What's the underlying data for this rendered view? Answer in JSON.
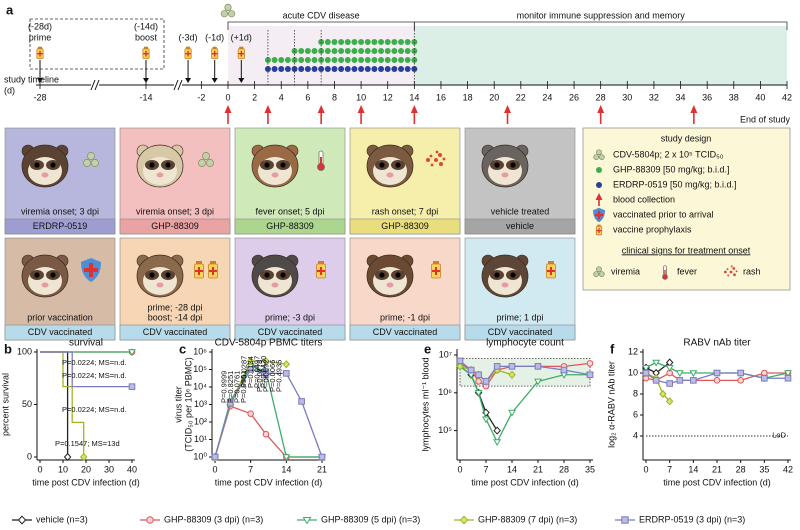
{
  "diagram": {
    "label": "a",
    "timeline_label": [
      "study timeline",
      "(d)"
    ],
    "ticks": [
      -28,
      -14,
      -2,
      0,
      2,
      4,
      6,
      8,
      10,
      12,
      14,
      16,
      18,
      20,
      22,
      24,
      26,
      28,
      30,
      32,
      34,
      36,
      38,
      40,
      42
    ],
    "phases": [
      {
        "label": "acute CDV disease",
        "from": 0,
        "to": 14
      },
      {
        "label": "monitor immune suppression and memory",
        "from": 14,
        "to": 42
      }
    ],
    "events": [
      {
        "day": -28,
        "lines": [
          "(-28d)",
          "prime"
        ]
      },
      {
        "day": -14,
        "lines": [
          "(-14d)",
          "boost"
        ]
      },
      {
        "day": -3,
        "lines": [
          "(-3d)"
        ]
      },
      {
        "day": -1,
        "lines": [
          "(-1d)"
        ]
      },
      {
        "day": 1,
        "lines": [
          "(+1d)"
        ]
      }
    ],
    "treatment_rows": [
      {
        "color": "#3cae4a",
        "from": 7,
        "to": 14
      },
      {
        "color": "#3cae4a",
        "from": 5,
        "to": 14
      },
      {
        "color": "#3cae4a",
        "from": 3,
        "to": 14
      },
      {
        "color": "#2a3f9c",
        "from": 3,
        "to": 14
      }
    ],
    "blood_collection_days": [
      0,
      3,
      7,
      10,
      14,
      21,
      28,
      35
    ],
    "end_label": "End of study",
    "cards": [
      {
        "caption": [
          "viremia onset; 3 dpi"
        ],
        "group": "ERDRP-0519",
        "bg": "#b7b7dd",
        "strip": "#9d9dd2",
        "icon": "virus"
      },
      {
        "caption": [
          "viremia onset; 3 dpi"
        ],
        "group": "GHP-88309",
        "bg": "#f3bfbf",
        "strip": "#e9a3a3",
        "icon": "virus"
      },
      {
        "caption": [
          "fever onset; 5 dpi"
        ],
        "group": "GHP-88309",
        "bg": "#cfe9b8",
        "strip": "#acd68f",
        "icon": "thermometer"
      },
      {
        "caption": [
          "rash onset;  7 dpi"
        ],
        "group": "GHP-88309",
        "bg": "#f6efac",
        "strip": "#e9de7e",
        "icon": "rash"
      },
      {
        "caption": [
          "vehicle treated"
        ],
        "group": "vehicle",
        "bg": "#c3c3c3",
        "strip": "#a5a5a5",
        "icon": "none"
      },
      {
        "caption": [
          "prior vaccination"
        ],
        "group": "CDV vaccinated",
        "bg": "#d6bba7",
        "strip": "#b7dbea",
        "icon": "shield"
      },
      {
        "caption": [
          "prime; -28 dpi",
          "boost; -14 dpi"
        ],
        "group": "CDV vaccinated",
        "bg": "#f6d6b4",
        "strip": "#b7dbea",
        "icon": "vial2"
      },
      {
        "caption": [
          "prime; -3 dpi"
        ],
        "group": "CDV vaccinated",
        "bg": "#ddcdea",
        "strip": "#b7dbea",
        "icon": "vial"
      },
      {
        "caption": [
          "prime; -1 dpi"
        ],
        "group": "CDV vaccinated",
        "bg": "#f8d8c8",
        "strip": "#b7dbea",
        "icon": "vial"
      },
      {
        "caption": [
          "prime; 1 dpi"
        ],
        "group": "CDV vaccinated",
        "bg": "#d1e9f1",
        "strip": "#b7dbea",
        "icon": "vial"
      }
    ],
    "study_design": {
      "title": "study design",
      "items": [
        {
          "icon": "virus",
          "text": "CDV-5804p; 2 x 10⁵ TCID₅₀"
        },
        {
          "icon": "green-dot",
          "text": "GHP-88309 [50 mg/kg; b.i.d.]"
        },
        {
          "icon": "blue-dot",
          "text": "ERDRP-0519 [50 mg/kg; b.i.d.]"
        },
        {
          "icon": "arrow",
          "text": "blood collection"
        },
        {
          "icon": "shield",
          "text": "vaccinated prior to arrival"
        },
        {
          "icon": "vial",
          "text": "vaccine prophylaxis"
        }
      ],
      "clinical_title": "clinical signs for treatment onset",
      "signs": [
        {
          "icon": "virus",
          "text": "viremia"
        },
        {
          "icon": "thermometer",
          "text": "fever"
        },
        {
          "icon": "rash",
          "text": "rash"
        }
      ]
    }
  },
  "legend": [
    {
      "name": "vehicle (n=3)",
      "color": "#222222",
      "fill": "#ffffff",
      "marker": "diamond"
    },
    {
      "name": "GHP-88309 (3 dpi) (n=3)",
      "color": "#e0565b",
      "fill": "#fbd6d6",
      "marker": "circle"
    },
    {
      "name": "GHP-88309 (5 dpi) (n=3)",
      "color": "#3cae6a",
      "fill": "#ffffff",
      "marker": "triangle-down"
    },
    {
      "name": "GHP-88309 (7 dpi) (n=3)",
      "color": "#a3b527",
      "fill": "#d9e26d",
      "marker": "diamond"
    },
    {
      "name": "ERDRP-0519 (3 dpi) (n=3)",
      "color": "#7b7bc0",
      "fill": "#bcbce3",
      "marker": "square"
    }
  ],
  "chart_data": [
    {
      "type": "line",
      "step": true,
      "label": "b",
      "title": "survival",
      "xlabel": "time post CDV infection (d)",
      "ylabel": [
        "percent survival"
      ],
      "xlim": [
        0,
        40
      ],
      "xticks": [
        0,
        10,
        20,
        30,
        40
      ],
      "ylim": [
        0,
        100
      ],
      "yticks": [
        0,
        50,
        100
      ],
      "series": [
        {
          "x": [
            0,
            12
          ],
          "values": [
            100,
            0
          ]
        },
        {
          "x": [
            0,
            40
          ],
          "values": [
            100,
            100
          ]
        },
        {
          "x": [
            0,
            40
          ],
          "values": [
            100,
            100
          ]
        },
        {
          "x": [
            0,
            10,
            14,
            19
          ],
          "values": [
            100,
            67,
            33,
            0
          ]
        },
        {
          "x": [
            0,
            14,
            40
          ],
          "values": [
            100,
            67,
            67
          ]
        }
      ],
      "annotations": [
        {
          "text": "P=0.0224; MS=n.d.",
          "color": "#e0565b"
        },
        {
          "text": "P=0.0224; MS=n.d.",
          "color": "#3cae6a"
        },
        {
          "text": "P=0.0224; MS=n.d.",
          "color": "#7b7bc0"
        },
        {
          "text": "P=0.1547; MS=13d",
          "color": "#a3b527"
        }
      ]
    },
    {
      "type": "line",
      "log": true,
      "label": "c",
      "title": "CDV-5804p PBMC titers",
      "xlabel": "time post CDV infection (d)",
      "ylabel": [
        "virus titer",
        "(TCID₅₀ per 10⁶ PBMC)"
      ],
      "xlim": [
        0,
        21
      ],
      "xticks": [
        0,
        7,
        14,
        21
      ],
      "ylim": [
        1,
        1000000
      ],
      "yticks": [
        {
          "value": 1,
          "label": "10⁰"
        },
        {
          "value": 10,
          "label": "10¹"
        },
        {
          "value": 100,
          "label": "10²"
        },
        {
          "value": 1000,
          "label": "10³"
        },
        {
          "value": 10000,
          "label": "10⁴"
        },
        {
          "value": 100000,
          "label": "10⁵"
        },
        {
          "value": 1000000,
          "label": "10⁶"
        }
      ],
      "series": [
        {
          "x": [
            0,
            3,
            7,
            10
          ],
          "values": [
            1,
            1000,
            200000,
            50000
          ]
        },
        {
          "x": [
            0,
            3,
            7,
            10,
            14,
            21
          ],
          "values": [
            1,
            800,
            300,
            20,
            1,
            1
          ]
        },
        {
          "x": [
            0,
            3,
            7,
            10,
            14,
            21
          ],
          "values": [
            1,
            1500,
            150000,
            80000,
            1,
            1
          ]
        },
        {
          "x": [
            0,
            3,
            7,
            10,
            14
          ],
          "values": [
            1,
            1000,
            300000,
            300000,
            200000
          ]
        },
        {
          "x": [
            0,
            3,
            7,
            10,
            14,
            17,
            21
          ],
          "values": [
            1,
            1200,
            100000,
            60000,
            60000,
            1500,
            1
          ]
        }
      ],
      "annotations": [
        {
          "x": 3,
          "texts": [
            "P=0.9999",
            "P=0.8251",
            "P=0.0761",
            "P=0.9951"
          ]
        },
        {
          "x": 7,
          "texts": [
            "P=0.0287",
            "P=0.1134",
            "P=0.0497",
            "P=0.0420"
          ]
        },
        {
          "x": 10,
          "texts": [
            "P=0.0778",
            "P=0.0092",
            "P=0.0066",
            "P=0.4935"
          ]
        }
      ]
    },
    {
      "type": "line",
      "log": true,
      "label": "e",
      "title": "lymphocyte count",
      "xlabel": "time post CDV infection (d)",
      "ylabel": [
        "lymphocytes ml⁻¹ blood"
      ],
      "xlim": [
        0,
        35
      ],
      "xticks": [
        0,
        7,
        14,
        21,
        28,
        35
      ],
      "ylim": [
        20000,
        12000000
      ],
      "yticks": [
        {
          "value": 100000,
          "label": "10⁵"
        },
        {
          "value": 1000000,
          "label": "10⁶"
        },
        {
          "value": 10000000,
          "label": "10⁷"
        }
      ],
      "reference_band": [
        1500000,
        8000000
      ],
      "series": [
        {
          "x": [
            0,
            3,
            5,
            7,
            10
          ],
          "values": [
            5000000,
            3000000,
            1000000,
            300000,
            100000
          ]
        },
        {
          "x": [
            0,
            3,
            5,
            7,
            10,
            14,
            21,
            28,
            35
          ],
          "values": [
            6000000,
            4000000,
            2000000,
            1500000,
            4000000,
            5000000,
            5000000,
            5000000,
            6000000
          ]
        },
        {
          "x": [
            0,
            3,
            5,
            7,
            10,
            14,
            21,
            28,
            35
          ],
          "values": [
            5000000,
            3000000,
            1000000,
            200000,
            50000,
            300000,
            2000000,
            3000000,
            3000000
          ]
        },
        {
          "x": [
            0,
            3,
            5,
            7,
            10,
            14
          ],
          "values": [
            5000000,
            4000000,
            3000000,
            2000000,
            4000000,
            3000000
          ]
        },
        {
          "x": [
            0,
            3,
            5,
            7,
            10,
            14,
            21,
            28,
            35
          ],
          "values": [
            7000000,
            4000000,
            3000000,
            2000000,
            5000000,
            5000000,
            5000000,
            4000000,
            3000000
          ]
        }
      ]
    },
    {
      "type": "line",
      "label": "f",
      "title": "RABV nAb titer",
      "xlabel": "time post CDV infection (d)",
      "ylabel": [
        "log₂ α-RABV nAb titer"
      ],
      "xlim": [
        0,
        42
      ],
      "xticks": [
        0,
        7,
        14,
        21,
        28,
        35,
        42
      ],
      "ylim": [
        2,
        12
      ],
      "yticks": [
        4,
        6,
        8,
        10,
        12
      ],
      "reference_line": {
        "value": 4,
        "label": "LoD"
      },
      "series": [
        {
          "x": [
            0,
            3,
            7
          ],
          "values": [
            10.5,
            10,
            11
          ]
        },
        {
          "x": [
            0,
            3,
            7,
            10,
            14,
            21,
            28,
            35,
            42
          ],
          "values": [
            9.5,
            9.3,
            10,
            9.3,
            9.3,
            9.3,
            9.3,
            10,
            10
          ]
        },
        {
          "x": [
            0,
            3,
            7,
            10,
            14,
            21,
            28,
            35,
            42
          ],
          "values": [
            10.5,
            11,
            10.5,
            10,
            10,
            10,
            10,
            9.5,
            10
          ]
        },
        {
          "x": [
            0,
            3,
            5,
            7
          ],
          "values": [
            10,
            9.5,
            8,
            7.3
          ]
        },
        {
          "x": [
            0,
            3,
            7,
            10,
            14,
            21,
            28,
            35,
            42
          ],
          "values": [
            10,
            9.3,
            9,
            9.3,
            9.3,
            10,
            10,
            9.5,
            9.5
          ]
        }
      ]
    }
  ]
}
